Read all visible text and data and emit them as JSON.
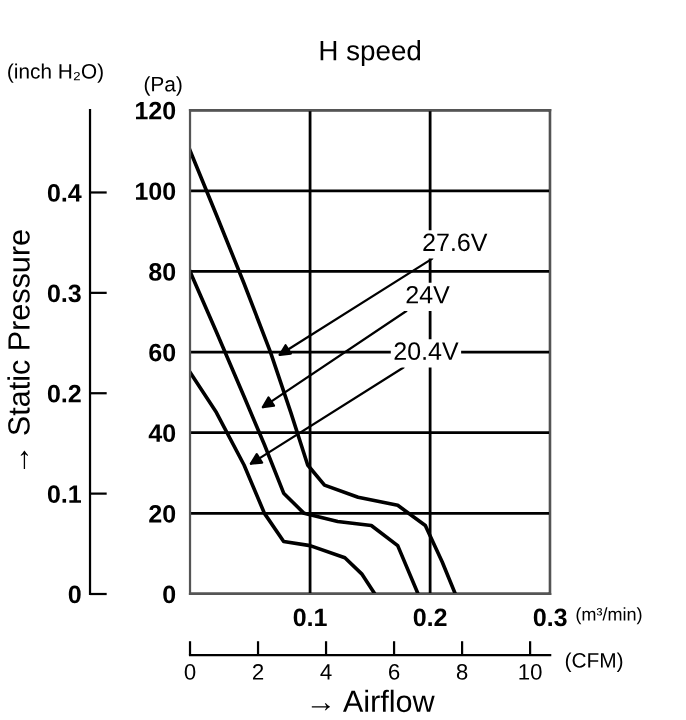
{
  "chart_data": {
    "type": "line",
    "title": "H speed",
    "xlabel": "→ Airflow",
    "y2label": "→ Static Pressure",
    "x2label": "(CFM)",
    "xlim": [
      0,
      0.3
    ],
    "xticks": [
      0.1,
      0.2,
      0.3
    ],
    "ylim": [
      0,
      120
    ],
    "yticks": [
      0,
      20,
      40,
      60,
      80,
      100,
      120
    ],
    "y2lim": [
      0,
      0.482
    ],
    "y2ticks": [
      0,
      0.1,
      0.2,
      0.3,
      0.4
    ],
    "x2lim": [
      0,
      10.59
    ],
    "x2ticks": [
      0,
      2,
      4,
      6,
      8,
      10
    ],
    "grid": true,
    "marker": "none",
    "line_style": "solid",
    "series": [
      {
        "color": "#000000",
        "x": [
          0,
          0.022,
          0.045,
          0.067,
          0.084,
          0.098,
          0.112,
          0.14,
          0.173,
          0.196,
          0.21,
          0.221
        ],
        "values": [
          110,
          94,
          77,
          60,
          45,
          32,
          27,
          24,
          22,
          17,
          8,
          0
        ]
      },
      {
        "color": "#000000",
        "x": [
          0,
          0.022,
          0.045,
          0.062,
          0.078,
          0.095,
          0.123,
          0.151,
          0.173,
          0.19
        ],
        "values": [
          80,
          65,
          49,
          37,
          25,
          20,
          18,
          17,
          12,
          0
        ]
      },
      {
        "color": "#000000",
        "x": [
          0,
          0.022,
          0.045,
          0.062,
          0.078,
          0.1,
          0.129,
          0.143,
          0.154
        ],
        "values": [
          55,
          45,
          32,
          20,
          13,
          12,
          9,
          5,
          0
        ]
      }
    ],
    "annotations": [
      {
        "text": "27.6V",
        "x": 0.073,
        "y": 59
      },
      {
        "text": "24V",
        "x": 0.059,
        "y": 46
      },
      {
        "text": "20.4V",
        "x": 0.049,
        "y": 32
      },
      "(Pa)",
      "(m³/min)",
      "(inch H₂O)"
    ]
  }
}
